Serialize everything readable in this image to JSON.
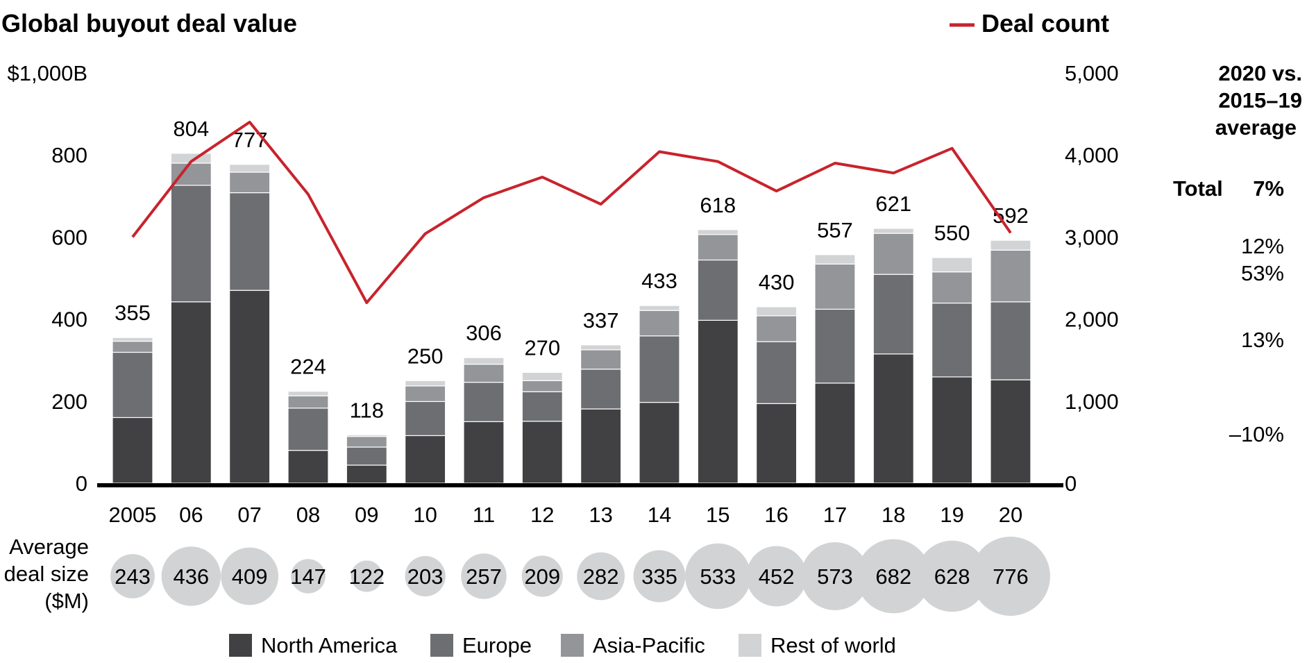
{
  "chart_data": {
    "type": "bar",
    "title": "Global buyout deal value",
    "line_legend": "Deal count",
    "categories": [
      "2005",
      "06",
      "07",
      "08",
      "09",
      "10",
      "11",
      "12",
      "13",
      "14",
      "15",
      "16",
      "17",
      "18",
      "19",
      "20"
    ],
    "series": [
      {
        "name": "North America",
        "color": "#414042",
        "values": [
          160,
          442,
          470,
          80,
          44,
          116,
          150,
          151,
          181,
          197,
          397,
          194,
          244,
          315,
          259,
          252
        ]
      },
      {
        "name": "Europe",
        "color": "#6d6e71",
        "values": [
          159,
          284,
          238,
          103,
          44,
          83,
          96,
          72,
          97,
          162,
          147,
          151,
          180,
          194,
          180,
          190
        ]
      },
      {
        "name": "Asia-Pacific",
        "color": "#939598",
        "values": [
          27,
          54,
          50,
          30,
          26,
          38,
          44,
          27,
          47,
          62,
          62,
          63,
          110,
          100,
          76,
          126
        ]
      },
      {
        "name": "Rest of world",
        "color": "#d1d3d4",
        "values": [
          9,
          24,
          19,
          11,
          4,
          13,
          16,
          20,
          12,
          12,
          12,
          22,
          23,
          12,
          35,
          24
        ]
      }
    ],
    "totals": [
      "355",
      "804",
      "777",
      "224",
      "118",
      "250",
      "306",
      "270",
      "337",
      "433",
      "618",
      "430",
      "557",
      "621",
      "550",
      "592"
    ],
    "deal_count": {
      "name": "Deal count",
      "color": "#c8232c",
      "values": [
        3000,
        3920,
        4400,
        3520,
        2200,
        3040,
        3480,
        3730,
        3400,
        4040,
        3920,
        3560,
        3900,
        3780,
        4080,
        3050
      ]
    },
    "left_axis": {
      "ylim": [
        0,
        1000
      ],
      "ticks": [
        "$1,000B",
        "800",
        "600",
        "400",
        "200",
        "0"
      ]
    },
    "right_axis": {
      "ylim": [
        0,
        5000
      ],
      "ticks": [
        "5,000",
        "4,000",
        "3,000",
        "2,000",
        "1,000",
        "0"
      ]
    },
    "avg_deal_size": {
      "label": [
        "Average",
        "deal size",
        "($M)"
      ],
      "values": [
        243,
        436,
        409,
        147,
        122,
        203,
        257,
        209,
        282,
        335,
        533,
        452,
        573,
        682,
        628,
        776
      ]
    },
    "comparison": {
      "header": [
        "2020 vs.",
        "2015–19",
        "average"
      ],
      "total_label": "Total",
      "total_value": "7%",
      "region_values": [
        "12%",
        "53%",
        "13%",
        "–10%"
      ]
    },
    "legend": [
      "North America",
      "Europe",
      "Asia-Pacific",
      "Rest of world"
    ]
  }
}
